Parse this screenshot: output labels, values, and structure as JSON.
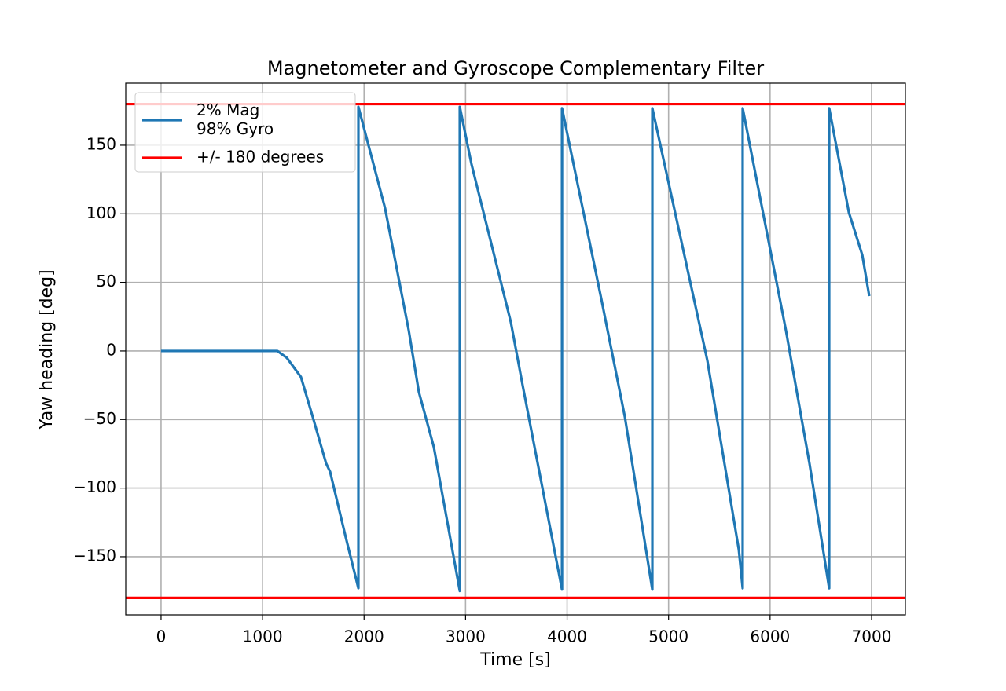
{
  "chart_data": {
    "type": "line",
    "title": "Magnetometer and Gyroscope Complementary Filter",
    "x_label": "Time [s]",
    "y_label": "Yaw heading [deg]",
    "series": [
      {
        "name": "2% Mag\n98% Gyro",
        "color": "#1f77b4",
        "x": [
          0,
          1146,
          1239,
          1378,
          1494,
          1626,
          1665,
          1820,
          1944,
          1944,
          2207,
          2440,
          2540,
          2687,
          2943,
          2943,
          3059,
          3446,
          3562,
          3950,
          3950,
          4337,
          4569,
          4840,
          4840,
          5382,
          5692,
          5730,
          5730,
          6156,
          6388,
          6582,
          6582,
          6776,
          6908,
          6977
        ],
        "values": [
          0,
          0,
          -5,
          -19,
          -48,
          -82,
          -88,
          -136,
          -173,
          178,
          104,
          15,
          -30,
          -70,
          -175,
          178,
          136,
          21,
          -25,
          -174,
          177,
          38,
          -48,
          -174,
          177,
          -7,
          -145,
          -173,
          177,
          15,
          -82,
          -173,
          177,
          101,
          70,
          40
        ]
      }
    ],
    "hlines": {
      "name": "+/- 180 degrees",
      "color": "#ff0000",
      "values": [
        180,
        -180
      ]
    },
    "xlim": [
      -348,
      7333
    ],
    "ylim": [
      -192.4,
      195.2
    ],
    "xticks": [
      0,
      1000,
      2000,
      3000,
      4000,
      5000,
      6000,
      7000
    ],
    "yticks": [
      {
        "value": -150,
        "label": "−150"
      },
      {
        "value": -100,
        "label": "−100"
      },
      {
        "value": -50,
        "label": "−50"
      },
      0,
      50,
      100,
      150
    ],
    "grid": true,
    "legend": "upper-left"
  }
}
